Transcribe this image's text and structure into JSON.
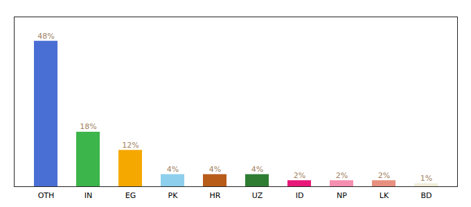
{
  "chart_data": {
    "type": "bar",
    "categories": [
      "OTH",
      "IN",
      "EG",
      "PK",
      "HR",
      "UZ",
      "ID",
      "NP",
      "LK",
      "BD"
    ],
    "values": [
      48,
      18,
      12,
      4,
      4,
      4,
      2,
      2,
      2,
      1
    ],
    "value_labels": [
      "48%",
      "18%",
      "12%",
      "4%",
      "4%",
      "4%",
      "2%",
      "2%",
      "2%",
      "1%"
    ],
    "colors": [
      "#4a6fd4",
      "#3cb54a",
      "#f5a800",
      "#8ecfed",
      "#b85c1a",
      "#2e7d32",
      "#e8187a",
      "#f48fb0",
      "#e89080",
      "#f0edd8"
    ],
    "ylim": [
      0,
      56
    ],
    "data_labels": true,
    "tick_labels": "x",
    "grid": false
  }
}
